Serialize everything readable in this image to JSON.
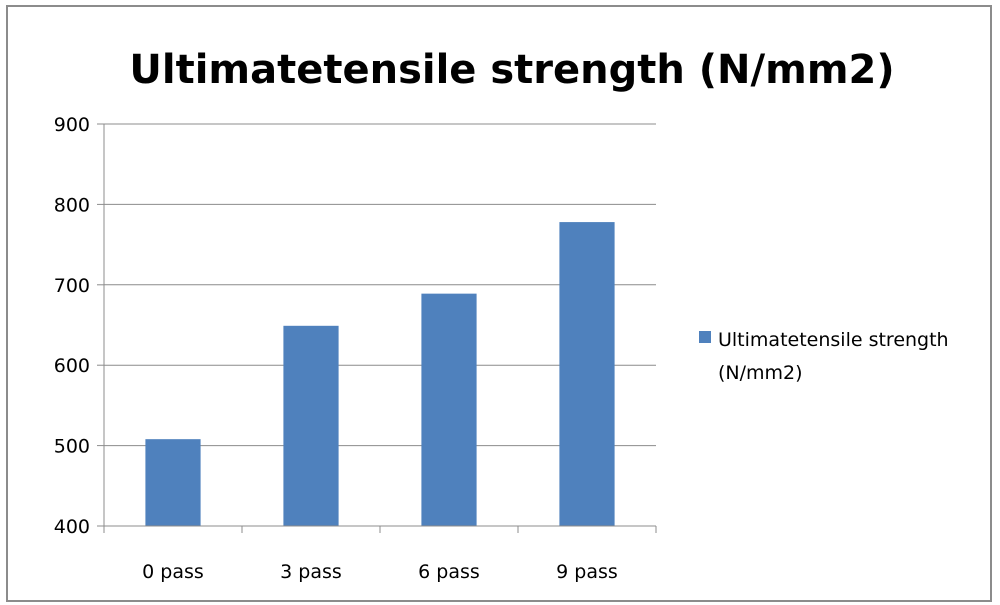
{
  "chart_data": {
    "type": "bar",
    "title": "Ultimatetensile strength (N/mm2)",
    "categories": [
      "0 pass",
      "3 pass",
      "6 pass",
      "9 pass"
    ],
    "series": [
      {
        "name": "Ultimatetensile strength (N/mm2)",
        "legend_lines": [
          "Ultimatetensile strength",
          "(N/mm2)"
        ],
        "values": [
          508,
          649,
          689,
          778
        ],
        "color": "#4f81bd"
      }
    ],
    "xlabel": "",
    "ylabel": "",
    "ylim": [
      400,
      900
    ],
    "yticks": [
      400,
      500,
      600,
      700,
      800,
      900
    ],
    "grid": true,
    "legend_position": "right"
  }
}
